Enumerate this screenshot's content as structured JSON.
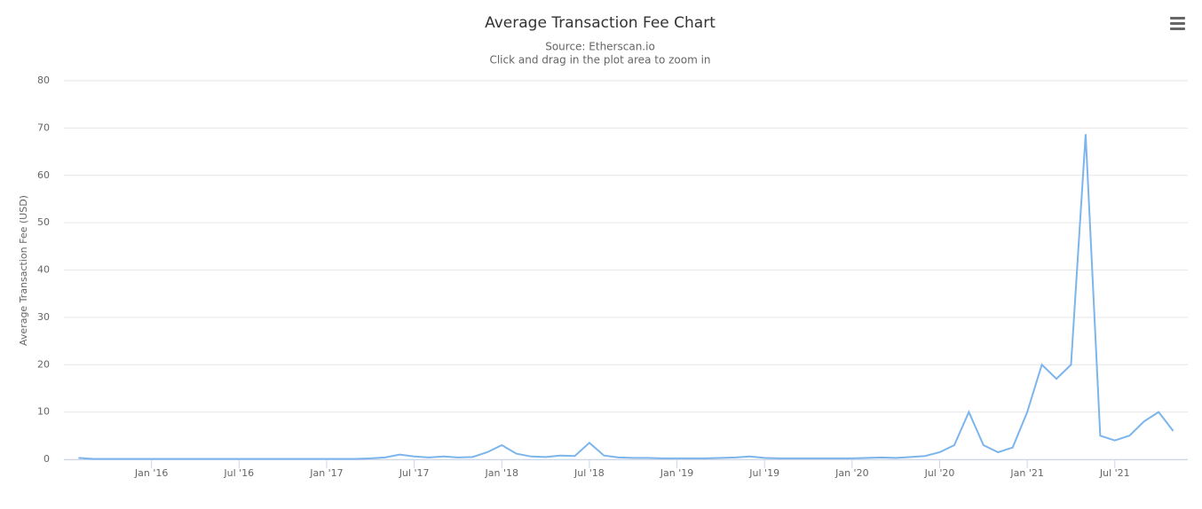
{
  "chart_data": {
    "type": "line",
    "title": "Average Transaction Fee Chart",
    "subtitle": [
      "Source: Etherscan.io",
      "Click and drag in the plot area to zoom in"
    ],
    "y_label": "Average Transaction Fee (USD)",
    "x": [
      "2015-08",
      "2015-09",
      "2015-10",
      "2015-11",
      "2015-12",
      "2016-01",
      "2016-02",
      "2016-03",
      "2016-04",
      "2016-05",
      "2016-06",
      "2016-07",
      "2016-08",
      "2016-09",
      "2016-10",
      "2016-11",
      "2016-12",
      "2017-01",
      "2017-02",
      "2017-03",
      "2017-04",
      "2017-05",
      "2017-06",
      "2017-07",
      "2017-08",
      "2017-09",
      "2017-10",
      "2017-11",
      "2017-12",
      "2018-01",
      "2018-02",
      "2018-03",
      "2018-04",
      "2018-05",
      "2018-06",
      "2018-07",
      "2018-08",
      "2018-09",
      "2018-10",
      "2018-11",
      "2018-12",
      "2019-01",
      "2019-02",
      "2019-03",
      "2019-04",
      "2019-05",
      "2019-06",
      "2019-07",
      "2019-08",
      "2019-09",
      "2019-10",
      "2019-11",
      "2019-12",
      "2020-01",
      "2020-02",
      "2020-03",
      "2020-04",
      "2020-05",
      "2020-06",
      "2020-07",
      "2020-08",
      "2020-09",
      "2020-10",
      "2020-11",
      "2020-12",
      "2021-01",
      "2021-02",
      "2021-03",
      "2021-04",
      "2021-05",
      "2021-06",
      "2021-07",
      "2021-08",
      "2021-09",
      "2021-10",
      "2021-11"
    ],
    "series": [
      {
        "name": "Average Transaction Fee",
        "color": "#7cb5ec",
        "values": [
          0.3,
          0.1,
          0.1,
          0.1,
          0.1,
          0.1,
          0.1,
          0.1,
          0.1,
          0.1,
          0.1,
          0.1,
          0.1,
          0.1,
          0.1,
          0.1,
          0.1,
          0.1,
          0.1,
          0.1,
          0.2,
          0.4,
          1.0,
          0.6,
          0.4,
          0.6,
          0.4,
          0.5,
          1.5,
          3.0,
          1.2,
          0.6,
          0.5,
          0.8,
          0.7,
          3.5,
          0.8,
          0.4,
          0.3,
          0.3,
          0.2,
          0.2,
          0.2,
          0.2,
          0.3,
          0.4,
          0.6,
          0.3,
          0.2,
          0.2,
          0.2,
          0.2,
          0.2,
          0.2,
          0.3,
          0.4,
          0.3,
          0.5,
          0.7,
          1.5,
          3.0,
          10.0,
          3.0,
          1.5,
          2.5,
          10.0,
          20.0,
          17.0,
          20.0,
          68.7,
          5.0,
          4.0,
          5.0,
          8.0,
          10.0,
          6.0
        ]
      }
    ],
    "xlim": [
      "2015-07",
      "2021-12"
    ],
    "xticks": [
      {
        "value": "2016-01",
        "label": "Jan '16"
      },
      {
        "value": "2016-07",
        "label": "Jul '16"
      },
      {
        "value": "2017-01",
        "label": "Jan '17"
      },
      {
        "value": "2017-07",
        "label": "Jul '17"
      },
      {
        "value": "2018-01",
        "label": "Jan '18"
      },
      {
        "value": "2018-07",
        "label": "Jul '18"
      },
      {
        "value": "2019-01",
        "label": "Jan '19"
      },
      {
        "value": "2019-07",
        "label": "Jul '19"
      },
      {
        "value": "2020-01",
        "label": "Jan '20"
      },
      {
        "value": "2020-07",
        "label": "Jul '20"
      },
      {
        "value": "2021-01",
        "label": "Jan '21"
      },
      {
        "value": "2021-07",
        "label": "Jul '21"
      }
    ],
    "ylim": [
      0,
      80
    ],
    "yticks": [
      0,
      10,
      20,
      30,
      40,
      50,
      60,
      70,
      80
    ],
    "grid": true
  }
}
